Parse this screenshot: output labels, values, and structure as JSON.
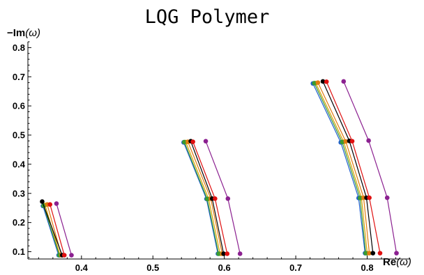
{
  "chart_data": {
    "type": "line",
    "title": "LQG Polymer",
    "xlabel_main": "Re",
    "xlabel_arg": "(ω)",
    "ylabel_main": "−Im",
    "ylabel_arg": "(ω)",
    "xlim": [
      0.325,
      0.86
    ],
    "ylim": [
      0.075,
      0.82
    ],
    "x_ticks": [
      0.4,
      0.5,
      0.6,
      0.7,
      0.8
    ],
    "x_tick_labels": [
      "0.4",
      "0.5",
      "0.6",
      "0.7",
      "0.8"
    ],
    "y_ticks": [
      0.1,
      0.2,
      0.3,
      0.4,
      0.5,
      0.6,
      0.7,
      0.8
    ],
    "y_tick_labels": [
      "0.1",
      "0.2",
      "0.3",
      "0.4",
      "0.5",
      "0.6",
      "0.7",
      "0.8"
    ],
    "grid": false,
    "legend": "none",
    "series": [
      {
        "color": "#1f5fcf",
        "branches": [
          [
            [
              0.346,
              0.257
            ],
            [
              0.368,
              0.088
            ]
          ],
          [
            [
              0.543,
              0.475
            ],
            [
              0.575,
              0.281
            ],
            [
              0.591,
              0.093
            ]
          ],
          [
            [
              0.724,
              0.677
            ],
            [
              0.763,
              0.475
            ],
            [
              0.788,
              0.284
            ],
            [
              0.797,
              0.095
            ]
          ]
        ]
      },
      {
        "color": "#d7a100",
        "branches": [
          [
            [
              0.349,
              0.26
            ],
            [
              0.37,
              0.088
            ]
          ],
          [
            [
              0.546,
              0.476
            ],
            [
              0.578,
              0.281
            ],
            [
              0.594,
              0.093
            ]
          ],
          [
            [
              0.728,
              0.678
            ],
            [
              0.767,
              0.477
            ],
            [
              0.792,
              0.284
            ],
            [
              0.8,
              0.095
            ]
          ]
        ]
      },
      {
        "color": "#3b9b2f",
        "branches": [
          [
            [
              0.347,
              0.258
            ],
            [
              0.369,
              0.088
            ]
          ],
          [
            [
              0.544,
              0.476
            ],
            [
              0.576,
              0.281
            ],
            [
              0.592,
              0.093
            ]
          ],
          [
            [
              0.726,
              0.678
            ],
            [
              0.765,
              0.476
            ],
            [
              0.79,
              0.284
            ],
            [
              0.798,
              0.095
            ]
          ]
        ]
      },
      {
        "color": "#e07a10",
        "branches": [
          [
            [
              0.352,
              0.262
            ],
            [
              0.372,
              0.088
            ]
          ],
          [
            [
              0.549,
              0.477
            ],
            [
              0.581,
              0.282
            ],
            [
              0.597,
              0.093
            ]
          ],
          [
            [
              0.731,
              0.68
            ],
            [
              0.77,
              0.478
            ],
            [
              0.795,
              0.285
            ],
            [
              0.803,
              0.095
            ]
          ]
        ]
      },
      {
        "color": "#000000",
        "branches": [
          [
            [
              0.345,
              0.272
            ],
            [
              0.373,
              0.088
            ]
          ],
          [
            [
              0.553,
              0.479
            ],
            [
              0.583,
              0.282
            ],
            [
              0.599,
              0.093
            ]
          ],
          [
            [
              0.738,
              0.684
            ],
            [
              0.775,
              0.48
            ],
            [
              0.799,
              0.285
            ],
            [
              0.808,
              0.095
            ]
          ]
        ]
      },
      {
        "color": "#e01010",
        "branches": [
          [
            [
              0.356,
              0.262
            ],
            [
              0.376,
              0.088
            ]
          ],
          [
            [
              0.556,
              0.477
            ],
            [
              0.587,
              0.282
            ],
            [
              0.604,
              0.093
            ]
          ],
          [
            [
              0.743,
              0.683
            ],
            [
              0.779,
              0.479
            ],
            [
              0.803,
              0.285
            ],
            [
              0.818,
              0.095
            ]
          ]
        ]
      },
      {
        "color": "#8b2090",
        "branches": [
          [
            [
              0.365,
              0.265
            ],
            [
              0.386,
              0.088
            ]
          ],
          [
            [
              0.574,
              0.479
            ],
            [
              0.605,
              0.282
            ],
            [
              0.622,
              0.093
            ]
          ],
          [
            [
              0.767,
              0.684
            ],
            [
              0.802,
              0.481
            ],
            [
              0.828,
              0.285
            ],
            [
              0.841,
              0.095
            ]
          ]
        ]
      }
    ]
  }
}
